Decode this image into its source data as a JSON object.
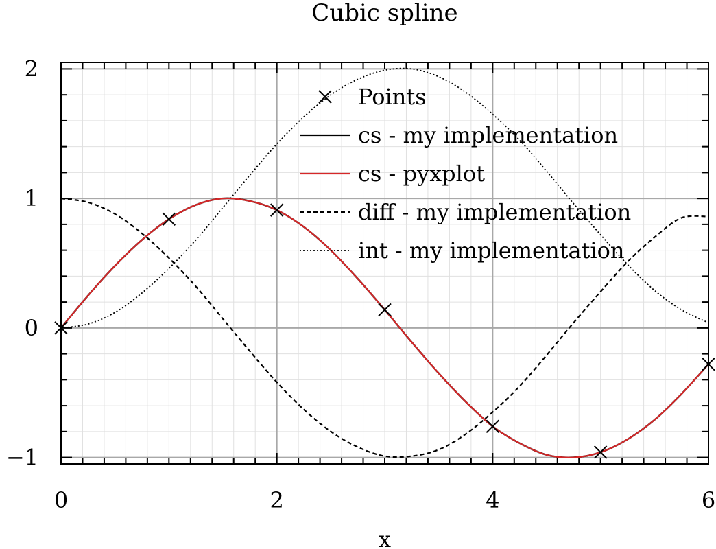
{
  "chart_data": {
    "type": "line",
    "title": "Cubic spline",
    "xlabel": "x",
    "ylabel": "",
    "xlim": [
      0,
      6
    ],
    "ylim": [
      -1.05,
      2.05
    ],
    "x_ticks": [
      "0",
      "2",
      "4",
      "6"
    ],
    "y_ticks": [
      "−1",
      "0",
      "1",
      "2"
    ],
    "grid": true,
    "legend_position": "top-center",
    "colors": {
      "points": "#000000",
      "my_cs": "#000000",
      "pyxplot_cs": "#d62728",
      "diff": "#000000",
      "int": "#000000",
      "grid_major": "#a8a8a8",
      "grid_minor": "#e0e0e0"
    },
    "legend": [
      {
        "label": "Points",
        "style": "marker-x"
      },
      {
        "label": "cs - my implementation",
        "style": "solid"
      },
      {
        "label": "cs - pyxplot",
        "style": "solid-red"
      },
      {
        "label": "diff - my implementation",
        "style": "dashed"
      },
      {
        "label": "int - my implementation",
        "style": "dotted"
      }
    ],
    "points": {
      "x": [
        0,
        1,
        2,
        3,
        4,
        5,
        6
      ],
      "y": [
        0,
        0.84,
        0.91,
        0.14,
        -0.76,
        -0.96,
        -0.28
      ]
    },
    "series": [
      {
        "name": "cs - my implementation",
        "x": [
          0,
          0.25,
          0.5,
          0.75,
          1,
          1.25,
          1.5,
          1.75,
          2,
          2.25,
          2.5,
          2.75,
          3,
          3.25,
          3.5,
          3.75,
          4,
          4.25,
          4.5,
          4.75,
          5,
          5.25,
          5.5,
          5.75,
          6
        ],
        "y": [
          0,
          0.25,
          0.48,
          0.68,
          0.84,
          0.95,
          1.0,
          0.98,
          0.91,
          0.78,
          0.6,
          0.38,
          0.14,
          -0.11,
          -0.35,
          -0.57,
          -0.76,
          -0.89,
          -0.98,
          -1.0,
          -0.96,
          -0.86,
          -0.71,
          -0.51,
          -0.28
        ]
      },
      {
        "name": "cs - pyxplot",
        "x": [
          0,
          0.25,
          0.5,
          0.75,
          1,
          1.25,
          1.5,
          1.75,
          2,
          2.25,
          2.5,
          2.75,
          3,
          3.25,
          3.5,
          3.75,
          4,
          4.25,
          4.5,
          4.75,
          5,
          5.25,
          5.5,
          5.75,
          6
        ],
        "y": [
          0,
          0.25,
          0.48,
          0.68,
          0.84,
          0.95,
          1.0,
          0.98,
          0.91,
          0.78,
          0.6,
          0.38,
          0.14,
          -0.11,
          -0.35,
          -0.57,
          -0.76,
          -0.89,
          -0.98,
          -1.0,
          -0.96,
          -0.86,
          -0.71,
          -0.51,
          -0.28
        ]
      },
      {
        "name": "diff - my implementation",
        "x": [
          0,
          0.25,
          0.5,
          0.75,
          1,
          1.25,
          1.5,
          1.75,
          2,
          2.25,
          2.5,
          2.75,
          3,
          3.25,
          3.5,
          3.75,
          4,
          4.25,
          4.5,
          4.75,
          5,
          5.25,
          5.5,
          5.75,
          6
        ],
        "y": [
          1.0,
          0.97,
          0.88,
          0.73,
          0.54,
          0.32,
          0.07,
          -0.18,
          -0.42,
          -0.63,
          -0.8,
          -0.92,
          -0.99,
          -0.99,
          -0.94,
          -0.82,
          -0.65,
          -0.45,
          -0.21,
          0.04,
          0.28,
          0.51,
          0.7,
          0.85,
          0.86
        ]
      },
      {
        "name": "int - my implementation",
        "x": [
          0,
          0.25,
          0.5,
          0.75,
          1,
          1.25,
          1.5,
          1.75,
          2,
          2.25,
          2.5,
          2.75,
          3,
          3.25,
          3.5,
          3.75,
          4,
          4.25,
          4.5,
          4.75,
          5,
          5.25,
          5.5,
          5.75,
          6
        ],
        "y": [
          0,
          0.03,
          0.12,
          0.27,
          0.46,
          0.68,
          0.93,
          1.18,
          1.42,
          1.63,
          1.8,
          1.92,
          1.99,
          2.0,
          1.94,
          1.82,
          1.65,
          1.45,
          1.21,
          0.96,
          0.72,
          0.49,
          0.29,
          0.14,
          0.04
        ]
      }
    ]
  }
}
